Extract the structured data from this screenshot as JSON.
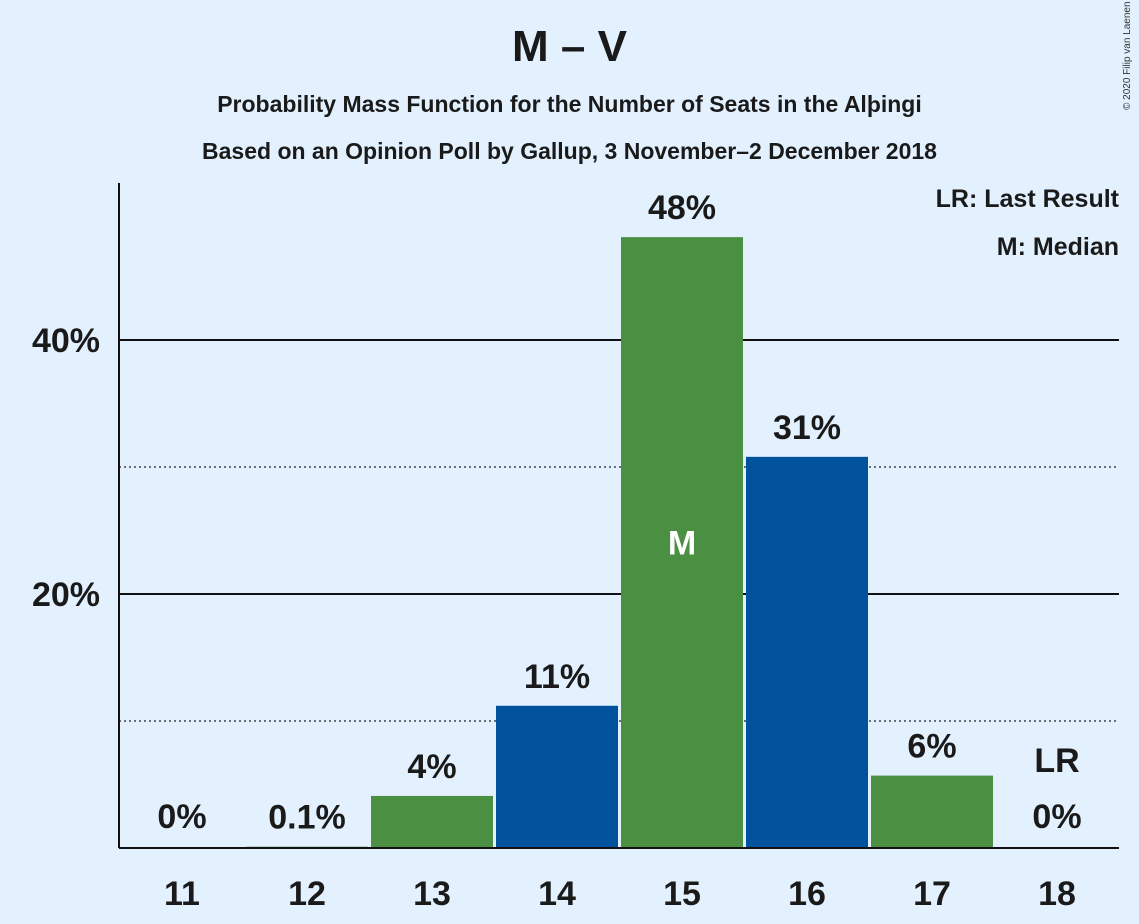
{
  "chart_data": {
    "type": "bar",
    "title": "M – V",
    "subtitle_1": "Probability Mass Function for the Number of Seats in the Alþingi",
    "subtitle_2": "Based on an Opinion Poll by Gallup, 3 November–2 December 2018",
    "categories": [
      "11",
      "12",
      "13",
      "14",
      "15",
      "16",
      "17",
      "18"
    ],
    "values": [
      0,
      0.1,
      4.1,
      11.2,
      48.1,
      30.8,
      5.7,
      0
    ],
    "value_labels": [
      "0%",
      "0.1%",
      "4%",
      "11%",
      "48%",
      "31%",
      "6%",
      "0%"
    ],
    "bar_colors": [
      "#4a8f42",
      "#4a8f42",
      "#4a8f42",
      "#00529c",
      "#4a8f42",
      "#00529c",
      "#4a8f42",
      "#4a8f42"
    ],
    "y_tick_labels": [
      {
        "value": 20,
        "label": "20%"
      },
      {
        "value": 40,
        "label": "40%"
      }
    ],
    "minor_gridlines": [
      10,
      30
    ],
    "ylim": [
      0,
      52
    ],
    "median_category": "15",
    "median_marker": "M",
    "last_result_category": "18",
    "last_result_marker": "LR",
    "legend": [
      "LR: Last Result",
      "M: Median"
    ],
    "legend_position": "top-right",
    "grid": true
  },
  "copyright": "© 2020 Filip van Laenen"
}
